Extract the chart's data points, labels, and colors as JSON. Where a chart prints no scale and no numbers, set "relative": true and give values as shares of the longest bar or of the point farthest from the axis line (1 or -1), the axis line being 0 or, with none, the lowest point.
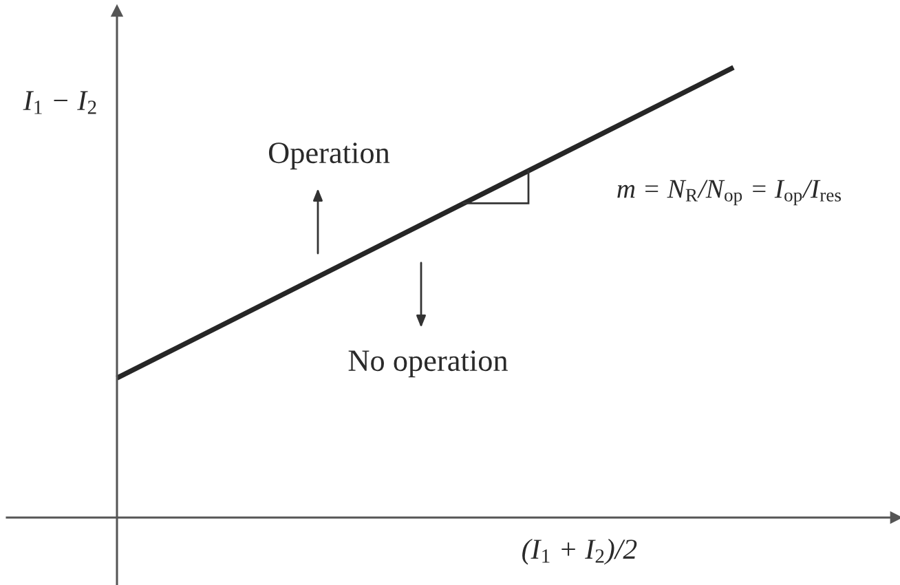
{
  "chart_data": {
    "type": "line",
    "relative": true,
    "xlabel": "(I$_{1}$ + I$_{2}$)/2",
    "ylabel": "I$_{1}$ − I$_{2}$",
    "categories": [
      null,
      null
    ],
    "series": [
      {
        "color": "#262626",
        "values": [
          0.31,
          1
        ]
      }
    ],
    "annotations": [
      "Operation",
      "No operation",
      "m = N$_{R}$/N$_{op}$ = I$_{op}$/I$_{res}$"
    ]
  }
}
